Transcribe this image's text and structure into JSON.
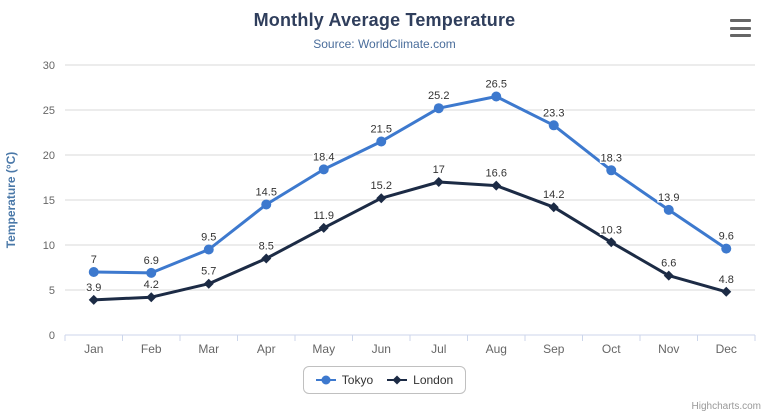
{
  "chart_data": {
    "type": "line",
    "title": "Monthly Average Temperature",
    "subtitle": "Source: WorldClimate.com",
    "categories": [
      "Jan",
      "Feb",
      "Mar",
      "Apr",
      "May",
      "Jun",
      "Jul",
      "Aug",
      "Sep",
      "Oct",
      "Nov",
      "Dec"
    ],
    "series": [
      {
        "name": "Tokyo",
        "color": "#3d79ce",
        "marker": "circle",
        "values": [
          7,
          6.9,
          9.5,
          14.5,
          18.4,
          21.5,
          25.2,
          26.5,
          23.3,
          18.3,
          13.9,
          9.6
        ]
      },
      {
        "name": "London",
        "color": "#1c2b45",
        "marker": "diamond",
        "values": [
          3.9,
          4.2,
          5.7,
          8.5,
          11.9,
          15.2,
          17,
          16.6,
          14.2,
          10.3,
          6.6,
          4.8
        ]
      }
    ],
    "xlabel": "",
    "ylabel": "Temperature (°C)",
    "ylim": [
      0,
      30
    ],
    "ytick_interval": 5,
    "yticks": [
      0,
      5,
      10,
      15,
      20,
      25,
      30
    ],
    "grid": true,
    "data_labels": true,
    "legend_position": "bottom-center"
  },
  "legend": {
    "items": [
      "Tokyo",
      "London"
    ]
  },
  "credits": {
    "label": "Highcharts.com"
  },
  "context_menu": {
    "icon": "menu-icon"
  },
  "theme": {
    "title_color": "#2f3e5c",
    "subtitle_color": "#4a6d9b",
    "yaxis_title_color": "#4a78a8",
    "axis_label_color": "#666666",
    "data_label_color": "#333333",
    "grid_color": "#d8d8d8",
    "axis_line_color": "#ccd6eb",
    "legend_text_color": "#333333",
    "credits_color": "#999999"
  }
}
